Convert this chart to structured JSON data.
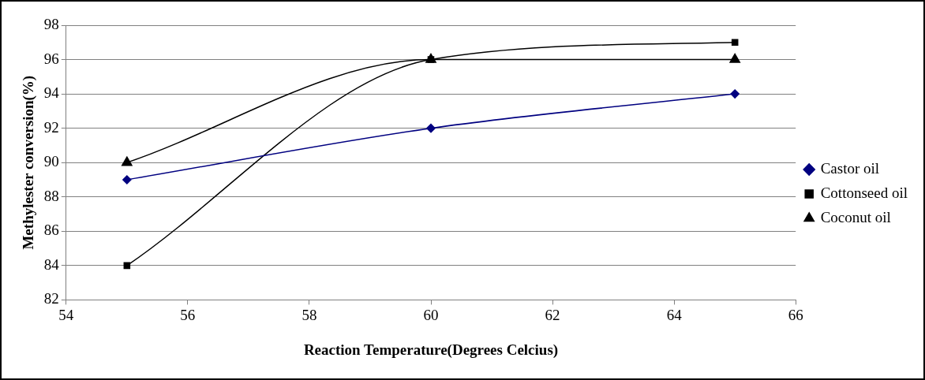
{
  "chart_data": {
    "type": "line",
    "xlabel": "Reaction Temperature(Degrees Celcius)",
    "ylabel": "Methylester conversion(%)",
    "x": [
      55,
      60,
      65
    ],
    "series": [
      {
        "name": "Castor oil",
        "color": "#000080",
        "values": [
          89,
          92,
          94
        ],
        "marker": "diamond"
      },
      {
        "name": "Cottonseed oil",
        "color": "#000000",
        "values": [
          84,
          96,
          97
        ],
        "marker": "square"
      },
      {
        "name": "Coconut oil",
        "color": "#000000",
        "values": [
          90,
          96,
          96
        ],
        "marker": "triangle"
      }
    ],
    "xlim": [
      54,
      66
    ],
    "xticks": [
      54,
      56,
      58,
      60,
      62,
      64,
      66
    ],
    "ylim": [
      82,
      98
    ],
    "yticks": [
      82,
      84,
      86,
      88,
      90,
      92,
      94,
      96,
      98
    ],
    "grid": "y",
    "legend": "right",
    "line_style": "solid"
  }
}
